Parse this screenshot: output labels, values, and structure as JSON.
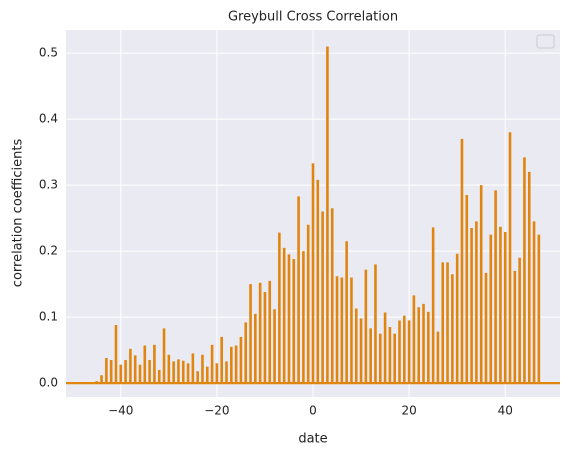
{
  "chart_data": {
    "type": "bar",
    "title": "Greybull Cross Correlation",
    "xlabel": "date",
    "ylabel": "correlation coefficients",
    "x": [
      -47,
      -46,
      -45,
      -44,
      -43,
      -42,
      -41,
      -40,
      -39,
      -38,
      -37,
      -36,
      -35,
      -34,
      -33,
      -32,
      -31,
      -30,
      -29,
      -28,
      -27,
      -26,
      -25,
      -24,
      -23,
      -22,
      -21,
      -20,
      -19,
      -18,
      -17,
      -16,
      -15,
      -14,
      -13,
      -12,
      -11,
      -10,
      -9,
      -8,
      -7,
      -6,
      -5,
      -4,
      -3,
      -2,
      -1,
      0,
      1,
      2,
      3,
      4,
      5,
      6,
      7,
      8,
      9,
      10,
      11,
      12,
      13,
      14,
      15,
      16,
      17,
      18,
      19,
      20,
      21,
      22,
      23,
      24,
      25,
      26,
      27,
      28,
      29,
      30,
      31,
      32,
      33,
      34,
      35,
      36,
      37,
      38,
      39,
      40,
      41,
      42,
      43,
      44,
      45,
      46,
      47
    ],
    "values": [
      0.0,
      0.0,
      0.003,
      0.012,
      0.038,
      0.035,
      0.088,
      0.028,
      0.035,
      0.052,
      0.042,
      0.028,
      0.057,
      0.035,
      0.058,
      0.02,
      0.083,
      0.043,
      0.033,
      0.036,
      0.034,
      0.03,
      0.045,
      0.018,
      0.043,
      0.025,
      0.058,
      0.03,
      0.07,
      0.033,
      0.055,
      0.057,
      0.07,
      0.092,
      0.15,
      0.105,
      0.152,
      0.138,
      0.155,
      0.112,
      0.228,
      0.205,
      0.195,
      0.188,
      0.283,
      0.2,
      0.24,
      0.333,
      0.308,
      0.26,
      0.51,
      0.265,
      0.162,
      0.16,
      0.215,
      0.16,
      0.113,
      0.098,
      0.172,
      0.083,
      0.18,
      0.075,
      0.107,
      0.085,
      0.075,
      0.095,
      0.102,
      0.095,
      0.133,
      0.115,
      0.12,
      0.108,
      0.236,
      0.078,
      0.183,
      0.183,
      0.165,
      0.196,
      0.37,
      0.285,
      0.235,
      0.245,
      0.3,
      0.167,
      0.225,
      0.292,
      0.237,
      0.229,
      0.38,
      0.17,
      0.19,
      0.342,
      0.32,
      0.245,
      0.225
    ],
    "color": "#e0850f",
    "xlim": [
      -51.4,
      51.4
    ],
    "ylim": [
      -0.021,
      0.535
    ],
    "xticks": [
      {
        "value": -40,
        "label": "−40"
      },
      {
        "value": -20,
        "label": "−20"
      },
      0,
      20,
      40
    ],
    "yticks": [
      {
        "value": 0,
        "label": "0.0"
      },
      0.1,
      0.2,
      0.3,
      0.4,
      0.5
    ],
    "grid": true
  }
}
